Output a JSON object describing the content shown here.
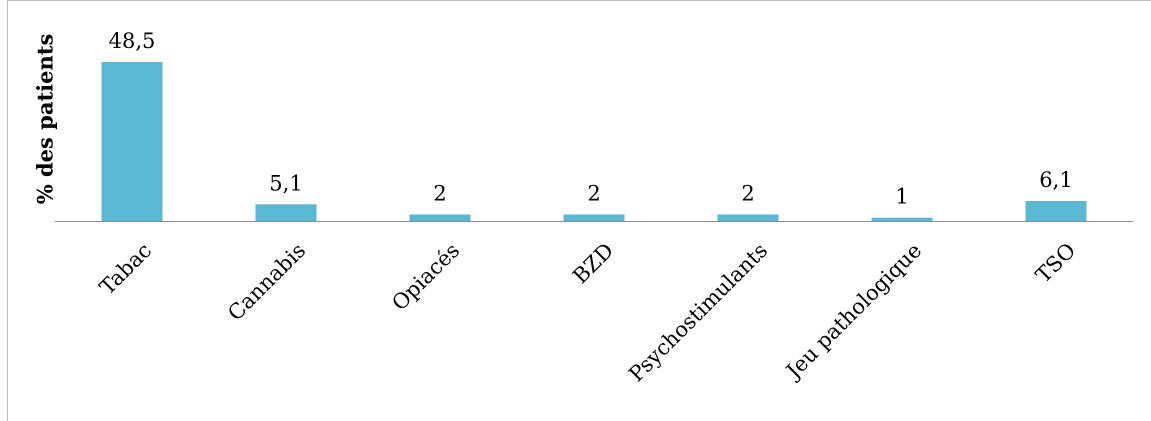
{
  "chart_data": {
    "type": "bar",
    "title": "",
    "xlabel": "",
    "ylabel": "% des patients",
    "categories": [
      "Tabac",
      "Cannabis",
      "Opiacés",
      "BZD",
      "Psychostimulants",
      "Jeu pathologique",
      "TSO"
    ],
    "values": [
      48.5,
      5.1,
      2,
      2,
      2,
      1,
      6.1
    ],
    "data_labels": [
      "48,5",
      "5,1",
      "2",
      "2",
      "2",
      "1",
      "6,1"
    ],
    "ylim": [
      0,
      48.5
    ],
    "grid": false,
    "legend": "none",
    "bar_color": "#5BB8D3"
  }
}
